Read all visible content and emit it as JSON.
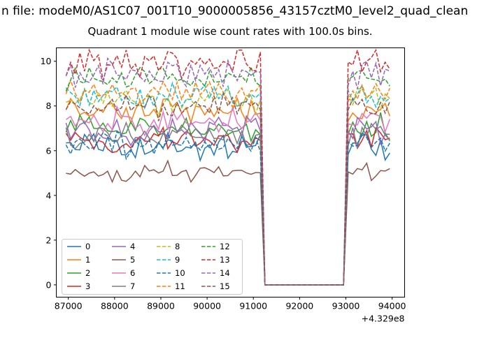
{
  "figure": {
    "suptitle": "n file: modeM0/AS1C07_001T10_9000005856_43157cztM0_level2_quad_clean",
    "title": "Quadrant 1 module wise count rates with 100.0s bins."
  },
  "chart_data": {
    "type": "line",
    "title": "Quadrant 1 module wise count rates with 100.0s bins.",
    "suptitle": "n file: modeM0/AS1C07_001T10_9000005856_43157cztM0_level2_quad_clean",
    "xlabel": "",
    "ylabel": "",
    "x_offset_label": "+4.329e8",
    "xlim": [
      86740,
      94270
    ],
    "ylim": [
      -0.55,
      10.6
    ],
    "x_ticks": [
      87000,
      88000,
      89000,
      90000,
      91000,
      92000,
      93000,
      94000
    ],
    "y_ticks": [
      0,
      2,
      4,
      6,
      8,
      10
    ],
    "x_start": 86950,
    "x_end": 93950,
    "bin_seconds": 100,
    "gap_zero_interval": [
      91200,
      93000
    ],
    "grid": false,
    "legend_position": "lower left",
    "legend_columns": 4,
    "series": [
      {
        "name": "0",
        "color": "#1f77b4",
        "style": "solid",
        "mean_rate": 6.15,
        "noise": 0.35
      },
      {
        "name": "1",
        "color": "#ff7f0e",
        "style": "solid",
        "mean_rate": 7.85,
        "noise": 0.35
      },
      {
        "name": "2",
        "color": "#2ca02c",
        "style": "solid",
        "mean_rate": 7.05,
        "noise": 0.35
      },
      {
        "name": "3",
        "color": "#d62728",
        "style": "solid",
        "mean_rate": 6.45,
        "noise": 0.35
      },
      {
        "name": "4",
        "color": "#9467bd",
        "style": "solid",
        "mean_rate": 6.9,
        "noise": 0.35
      },
      {
        "name": "5",
        "color": "#8c564b",
        "style": "solid",
        "mean_rate": 5.0,
        "noise": 0.3
      },
      {
        "name": "6",
        "color": "#e377c2",
        "style": "solid",
        "mean_rate": 7.3,
        "noise": 0.35
      },
      {
        "name": "7",
        "color": "#7f7f7f",
        "style": "solid",
        "mean_rate": 6.7,
        "noise": 0.35
      },
      {
        "name": "8",
        "color": "#bcbd22",
        "style": "dashed",
        "mean_rate": 8.15,
        "noise": 0.35
      },
      {
        "name": "9",
        "color": "#17becf",
        "style": "dashed",
        "mean_rate": 8.45,
        "noise": 0.35
      },
      {
        "name": "10",
        "color": "#1f77b4",
        "style": "dashed",
        "mean_rate": 6.3,
        "noise": 0.35
      },
      {
        "name": "11",
        "color": "#ff7f0e",
        "style": "dashed",
        "mean_rate": 8.6,
        "noise": 0.35
      },
      {
        "name": "12",
        "color": "#2ca02c",
        "style": "dashed",
        "mean_rate": 9.2,
        "noise": 0.35
      },
      {
        "name": "13",
        "color": "#d62728",
        "style": "dashed",
        "mean_rate": 9.9,
        "noise": 0.45
      },
      {
        "name": "14",
        "color": "#9467bd",
        "style": "dashed",
        "mean_rate": 9.45,
        "noise": 0.35
      },
      {
        "name": "15",
        "color": "#8c564b",
        "style": "dashed",
        "mean_rate": 7.95,
        "noise": 0.35
      }
    ]
  }
}
